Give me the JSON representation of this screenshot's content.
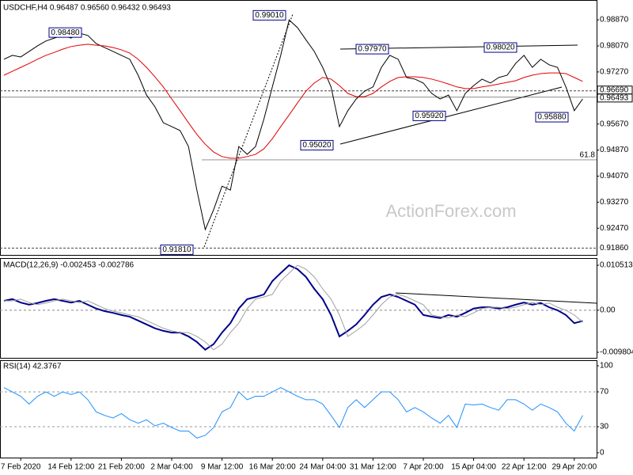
{
  "chart_data": {
    "type": "line",
    "watermark": "ActionForex.com",
    "categories": [
      null,
      null,
      "7 Feb 2020",
      null,
      null,
      null,
      null,
      null,
      "14 Feb 12:00",
      null,
      null,
      null,
      null,
      null,
      "21 Feb 20:00",
      null,
      null,
      null,
      null,
      null,
      "2 Mar 04:00",
      null,
      null,
      null,
      null,
      null,
      "9 Mar 12:00",
      null,
      null,
      null,
      null,
      null,
      "16 Mar 20:00",
      null,
      null,
      null,
      null,
      null,
      "24 Mar 04:00",
      null,
      null,
      null,
      null,
      null,
      "31 Mar 12:00",
      null,
      null,
      null,
      null,
      null,
      "7 Apr 20:00",
      null,
      null,
      null,
      null,
      null,
      "15 Apr 04:00",
      null,
      null,
      null,
      null,
      null,
      "22 Apr 12:00",
      null,
      null,
      null,
      null,
      null,
      "29 Apr 20:00",
      null
    ],
    "panels": [
      {
        "title": "USDCHF,H4  0.96487 0.96560 0.96432 0.96493",
        "ylim": [
          0.9165,
          0.9948
        ],
        "yticks": [
          {
            "value": 0.9887,
            "label": "0.98870"
          },
          {
            "value": 0.9807,
            "label": "0.98070"
          },
          {
            "value": 0.9727,
            "label": "0.97270"
          },
          {
            "value": 0.9567,
            "label": "0.95670"
          },
          {
            "value": 0.9487,
            "label": "0.94870"
          },
          {
            "value": 0.9407,
            "label": "0.94070"
          },
          {
            "value": 0.9327,
            "label": "0.93270"
          },
          {
            "value": 0.9247,
            "label": "0.92470"
          }
        ],
        "series": [
          {
            "name": "USDCHF",
            "color": "#000000",
            "values": [
              0.9766,
              0.9778,
              0.9773,
              0.979,
              0.9807,
              0.9822,
              0.9831,
              0.9839,
              0.9831,
              0.9846,
              0.9839,
              0.9814,
              0.9802,
              0.979,
              0.9778,
              0.9766,
              0.9717,
              0.9656,
              0.962,
              0.9571,
              0.9559,
              0.9547,
              0.9498,
              0.9364,
              0.9243,
              0.9304,
              0.9376,
              0.9364,
              0.9498,
              0.9474,
              0.9498,
              0.9583,
              0.9681,
              0.9778,
              0.9887,
              0.9863,
              0.9826,
              0.979,
              0.9741,
              0.9681,
              0.9559,
              0.9608,
              0.9644,
              0.9668,
              0.9681,
              0.9741,
              0.9778,
              0.9766,
              0.971,
              0.9705,
              0.9693,
              0.9661,
              0.9644,
              0.9656,
              0.9608,
              0.9661,
              0.9685,
              0.9705,
              0.9693,
              0.971,
              0.9717,
              0.9753,
              0.9778,
              0.9741,
              0.9766,
              0.9749,
              0.9741,
              0.9681,
              0.9608,
              0.9644
            ]
          },
          {
            "name": "MA",
            "color": "#e00000",
            "values": [
              0.9717,
              0.9729,
              0.9741,
              0.9753,
              0.9766,
              0.9778,
              0.9787,
              0.9797,
              0.9805,
              0.9809,
              0.9812,
              0.9809,
              0.9807,
              0.9802,
              0.9795,
              0.9785,
              0.9766,
              0.9741,
              0.9712,
              0.9681,
              0.9644,
              0.9608,
              0.9571,
              0.9535,
              0.9505,
              0.9481,
              0.9467,
              0.9462,
              0.9462,
              0.9467,
              0.9474,
              0.9491,
              0.9522,
              0.9559,
              0.9595,
              0.9632,
              0.9668,
              0.9693,
              0.971,
              0.9705,
              0.9685,
              0.9661,
              0.9651,
              0.9651,
              0.9661,
              0.9681,
              0.9698,
              0.971,
              0.9712,
              0.9712,
              0.971,
              0.9705,
              0.9698,
              0.969,
              0.9681,
              0.9676,
              0.9676,
              0.9681,
              0.9685,
              0.969,
              0.9695,
              0.97,
              0.971,
              0.9717,
              0.9722,
              0.9724,
              0.9724,
              0.9722,
              0.971,
              0.9698
            ]
          }
        ],
        "annotations": [
          {
            "label": "0.98480",
            "value": 0.9848
          },
          {
            "label": "0.99010",
            "value": 0.9901
          },
          {
            "label": "0.97970",
            "value": 0.9797
          },
          {
            "label": "0.98020",
            "value": 0.9802
          },
          {
            "label": "0.95020",
            "value": 0.9502
          },
          {
            "label": "0.95920",
            "value": 0.9592
          },
          {
            "label": "0.95880",
            "value": 0.9588
          },
          {
            "label": "0.91810",
            "value": 0.9181
          }
        ],
        "levels": [
          {
            "label": "0.96690",
            "value": 0.9669
          },
          {
            "label": "0.96493",
            "value": 0.96493
          },
          {
            "label": "0.91860",
            "value": 0.9186
          }
        ],
        "fib_level": {
          "text": "61.8",
          "price": 0.9457
        }
      },
      {
        "title": "MACD(12,26,9) -0.002453 -0.002786",
        "ylim": [
          -0.0111,
          0.01218
        ],
        "yticks": [
          0.010513,
          {
            "value": 0,
            "label": "0.00"
          },
          -0.009804
        ],
        "series": [
          {
            "name": "MACD",
            "color": "#00008b",
            "values": [
              0.0022,
              0.0026,
              0.0018,
              0.0013,
              0.0017,
              0.0022,
              0.0026,
              0.0022,
              0.0018,
              0.0022,
              0.0013,
              0.0004,
              -0.0002,
              -0.0006,
              -0.0011,
              -0.0015,
              -0.0024,
              -0.0033,
              -0.0042,
              -0.0048,
              -0.0052,
              -0.0052,
              -0.0061,
              -0.0074,
              -0.0092,
              -0.0079,
              -0.0052,
              -0.003,
              0.0004,
              0.0026,
              0.0031,
              0.0037,
              0.0068,
              0.0087,
              0.0105,
              0.0096,
              0.0078,
              0.005,
              0.0026,
              -0.0011,
              -0.0061,
              -0.0048,
              -0.0033,
              -0.0011,
              0.0013,
              0.0031,
              0.0037,
              0.0031,
              0.0022,
              0.0013,
              -0.0011,
              -0.0015,
              -0.0018,
              -0.0011,
              -0.0015,
              -0.0006,
              0.0004,
              0.0007,
              0.0007,
              0.0004,
              0.0007,
              0.0013,
              0.0018,
              0.0013,
              0.0017,
              0.0007,
              0,
              -0.0011,
              -0.003,
              -0.0025
            ]
          },
          {
            "name": "Signal",
            "color": "#a0a0a0",
            "values": [
              0.0022,
              0.0022,
              0.0026,
              0.0018,
              0.0013,
              0.0017,
              0.0022,
              0.0026,
              0.0022,
              0.0018,
              0.0022,
              0.0013,
              0.0004,
              -0.0002,
              -0.0006,
              -0.0011,
              -0.0015,
              -0.0024,
              -0.0033,
              -0.0042,
              -0.0048,
              -0.0052,
              -0.0052,
              -0.0061,
              -0.0074,
              -0.0092,
              -0.0079,
              -0.0052,
              -0.003,
              0.0004,
              0.0026,
              0.0031,
              0.0037,
              0.0068,
              0.0087,
              0.0105,
              0.0096,
              0.0078,
              0.005,
              0.0026,
              -0.0011,
              -0.0061,
              -0.0048,
              -0.0033,
              -0.0011,
              0.0013,
              0.0031,
              0.0037,
              0.0031,
              0.0022,
              0.0013,
              -0.0011,
              -0.0015,
              -0.0018,
              -0.0011,
              -0.0015,
              -0.0006,
              0.0004,
              0.0007,
              0.0007,
              0.0004,
              0.0007,
              0.0013,
              0.0018,
              0.0013,
              0.0017,
              0.0007,
              0,
              -0.0011,
              -0.0028
            ]
          }
        ]
      },
      {
        "title": "RSI(14) 42.3767",
        "ylim": [
          -5.5,
          106.4
        ],
        "yticks": [
          100,
          70,
          30,
          0
        ],
        "levels_dashed": [
          70,
          30
        ],
        "series": [
          {
            "name": "RSI",
            "color": "#1e90ff",
            "values": [
              75,
              70,
              65,
              56,
              65,
              70,
              65,
              70,
              67,
              70,
              61,
              47,
              43,
              40,
              45,
              38,
              34,
              38,
              31,
              34,
              29,
              25,
              25,
              17,
              20,
              29,
              47,
              52,
              70,
              61,
              65,
              65,
              70,
              75,
              70,
              65,
              61,
              61,
              56,
              43,
              29,
              52,
              61,
              52,
              61,
              70,
              70,
              61,
              47,
              52,
              47,
              40,
              34,
              43,
              29,
              56,
              55,
              56,
              52,
              49,
              61,
              61,
              56,
              49,
              56,
              52,
              47,
              34,
              25,
              43
            ]
          }
        ]
      }
    ]
  }
}
